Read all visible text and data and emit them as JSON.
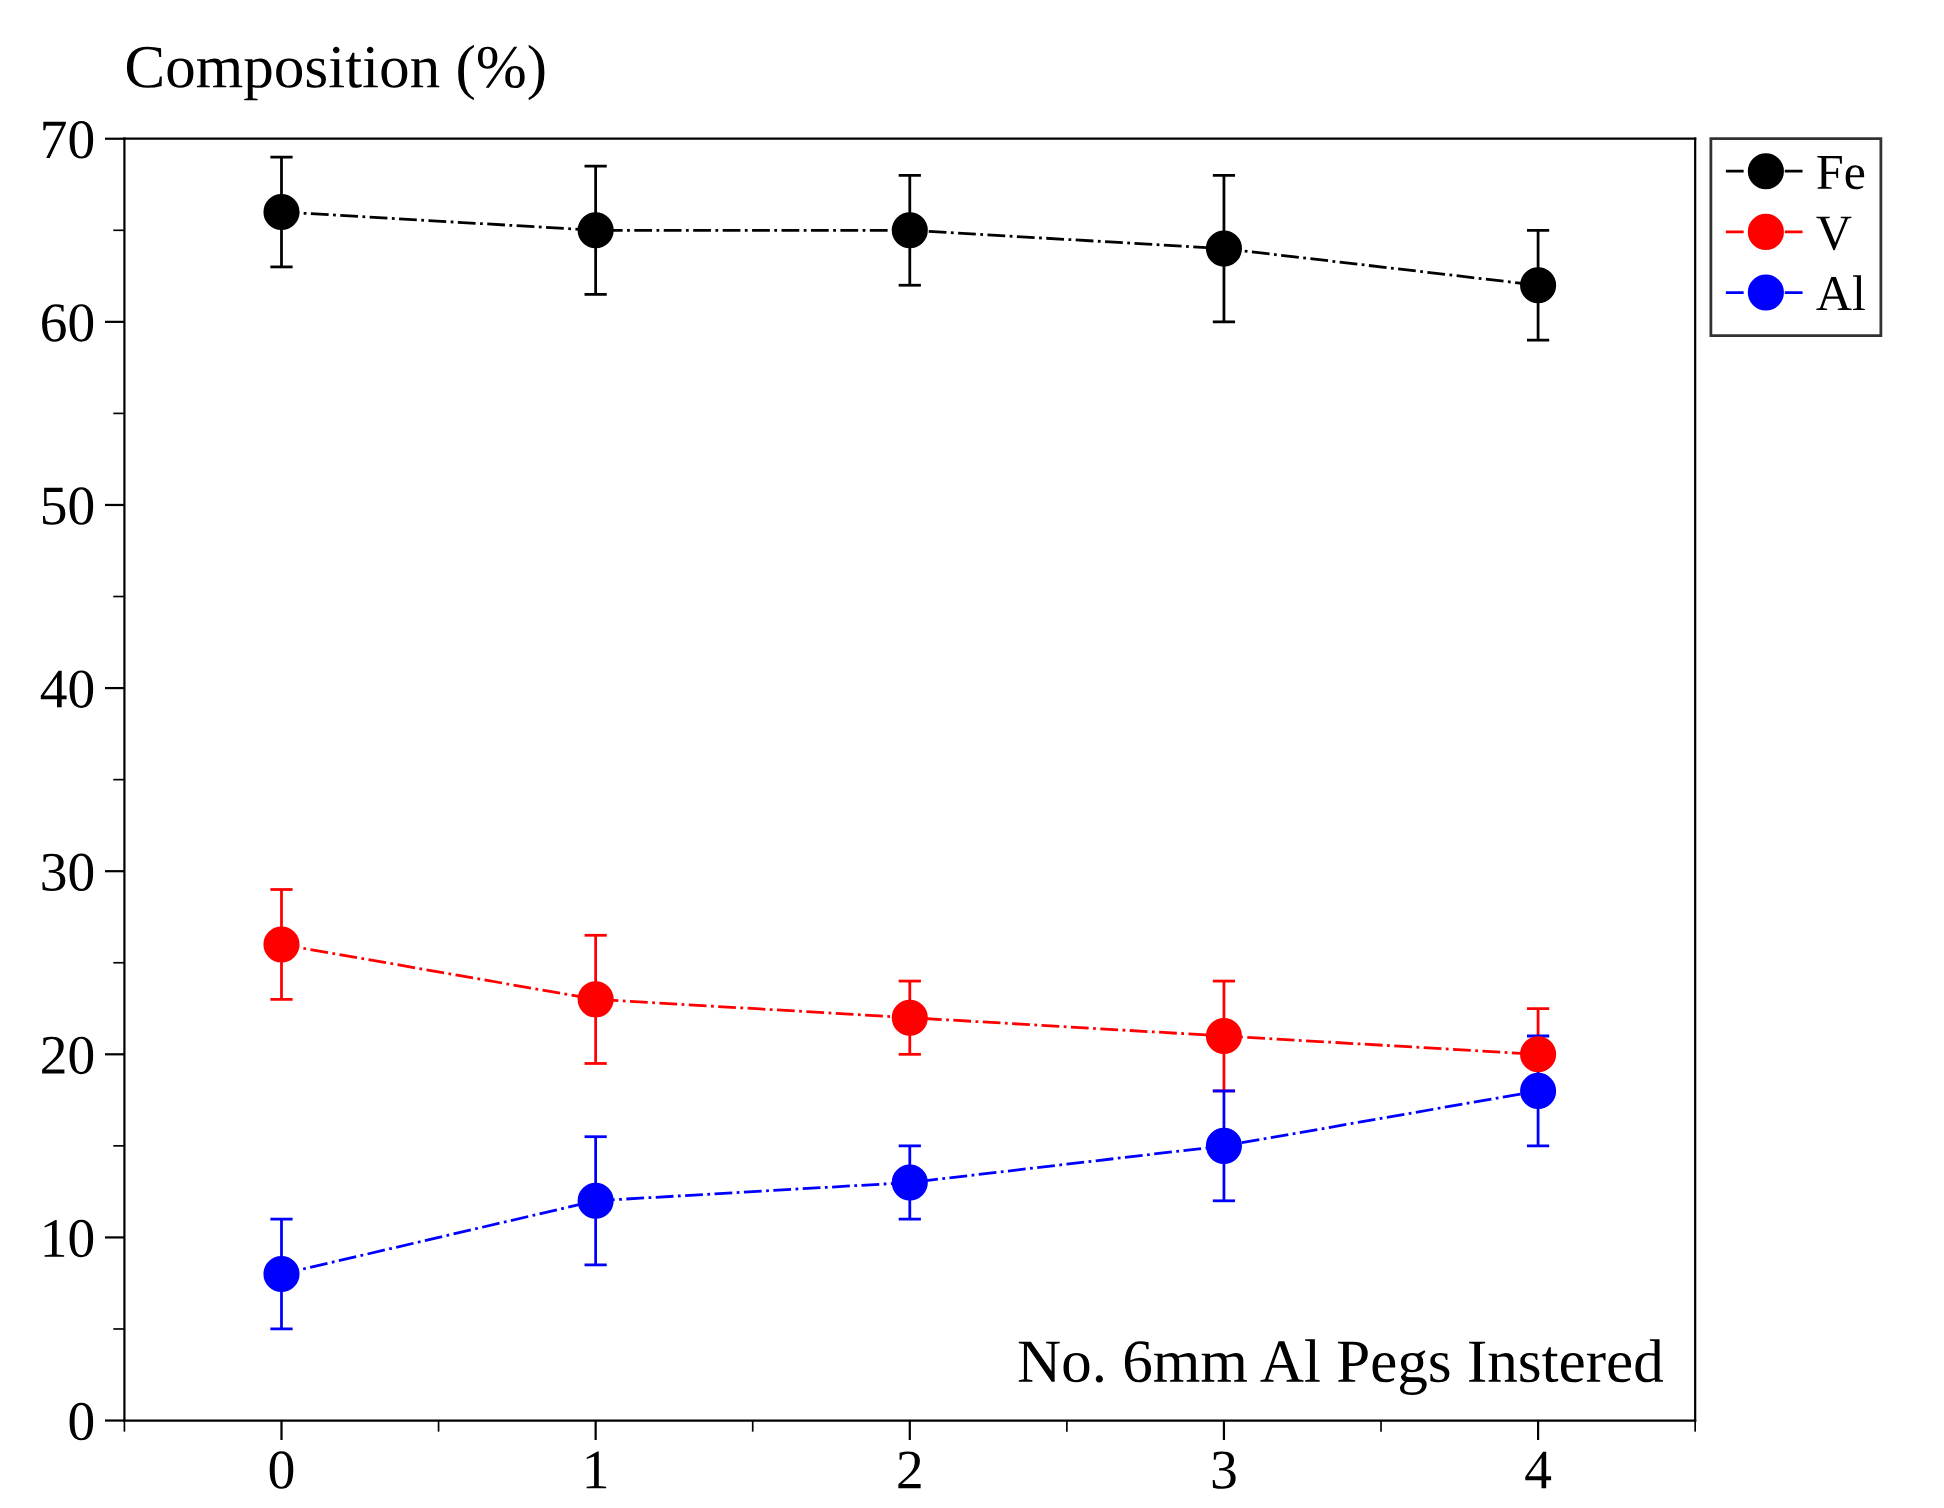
{
  "chart_data": {
    "type": "line",
    "ylabel": "Composition (%)",
    "xlabel": "No. 6mm Al Pegs Instered",
    "x": [
      0,
      1,
      2,
      3,
      4
    ],
    "xlim": [
      -0.5,
      4.5
    ],
    "xticks": [
      0,
      1,
      2,
      3,
      4
    ],
    "ylim": [
      0,
      70
    ],
    "yticks": [
      0,
      10,
      20,
      30,
      40,
      50,
      60,
      70
    ],
    "marker": "circle",
    "line_style": "dashdot",
    "grid": false,
    "legend": "top right",
    "series": [
      {
        "name": "Fe",
        "color": "#000000",
        "values": [
          66,
          65,
          65,
          64,
          62
        ],
        "errors": [
          3,
          3.5,
          3,
          4,
          3
        ]
      },
      {
        "name": "V",
        "color": "#ff0000",
        "values": [
          26,
          23,
          22,
          21,
          20
        ],
        "errors": [
          3,
          3.5,
          2,
          3,
          2.5
        ]
      },
      {
        "name": "Al",
        "color": "#0000ff",
        "values": [
          8,
          12,
          13,
          15,
          18
        ],
        "errors": [
          3,
          3.5,
          2,
          3,
          3
        ]
      }
    ]
  }
}
